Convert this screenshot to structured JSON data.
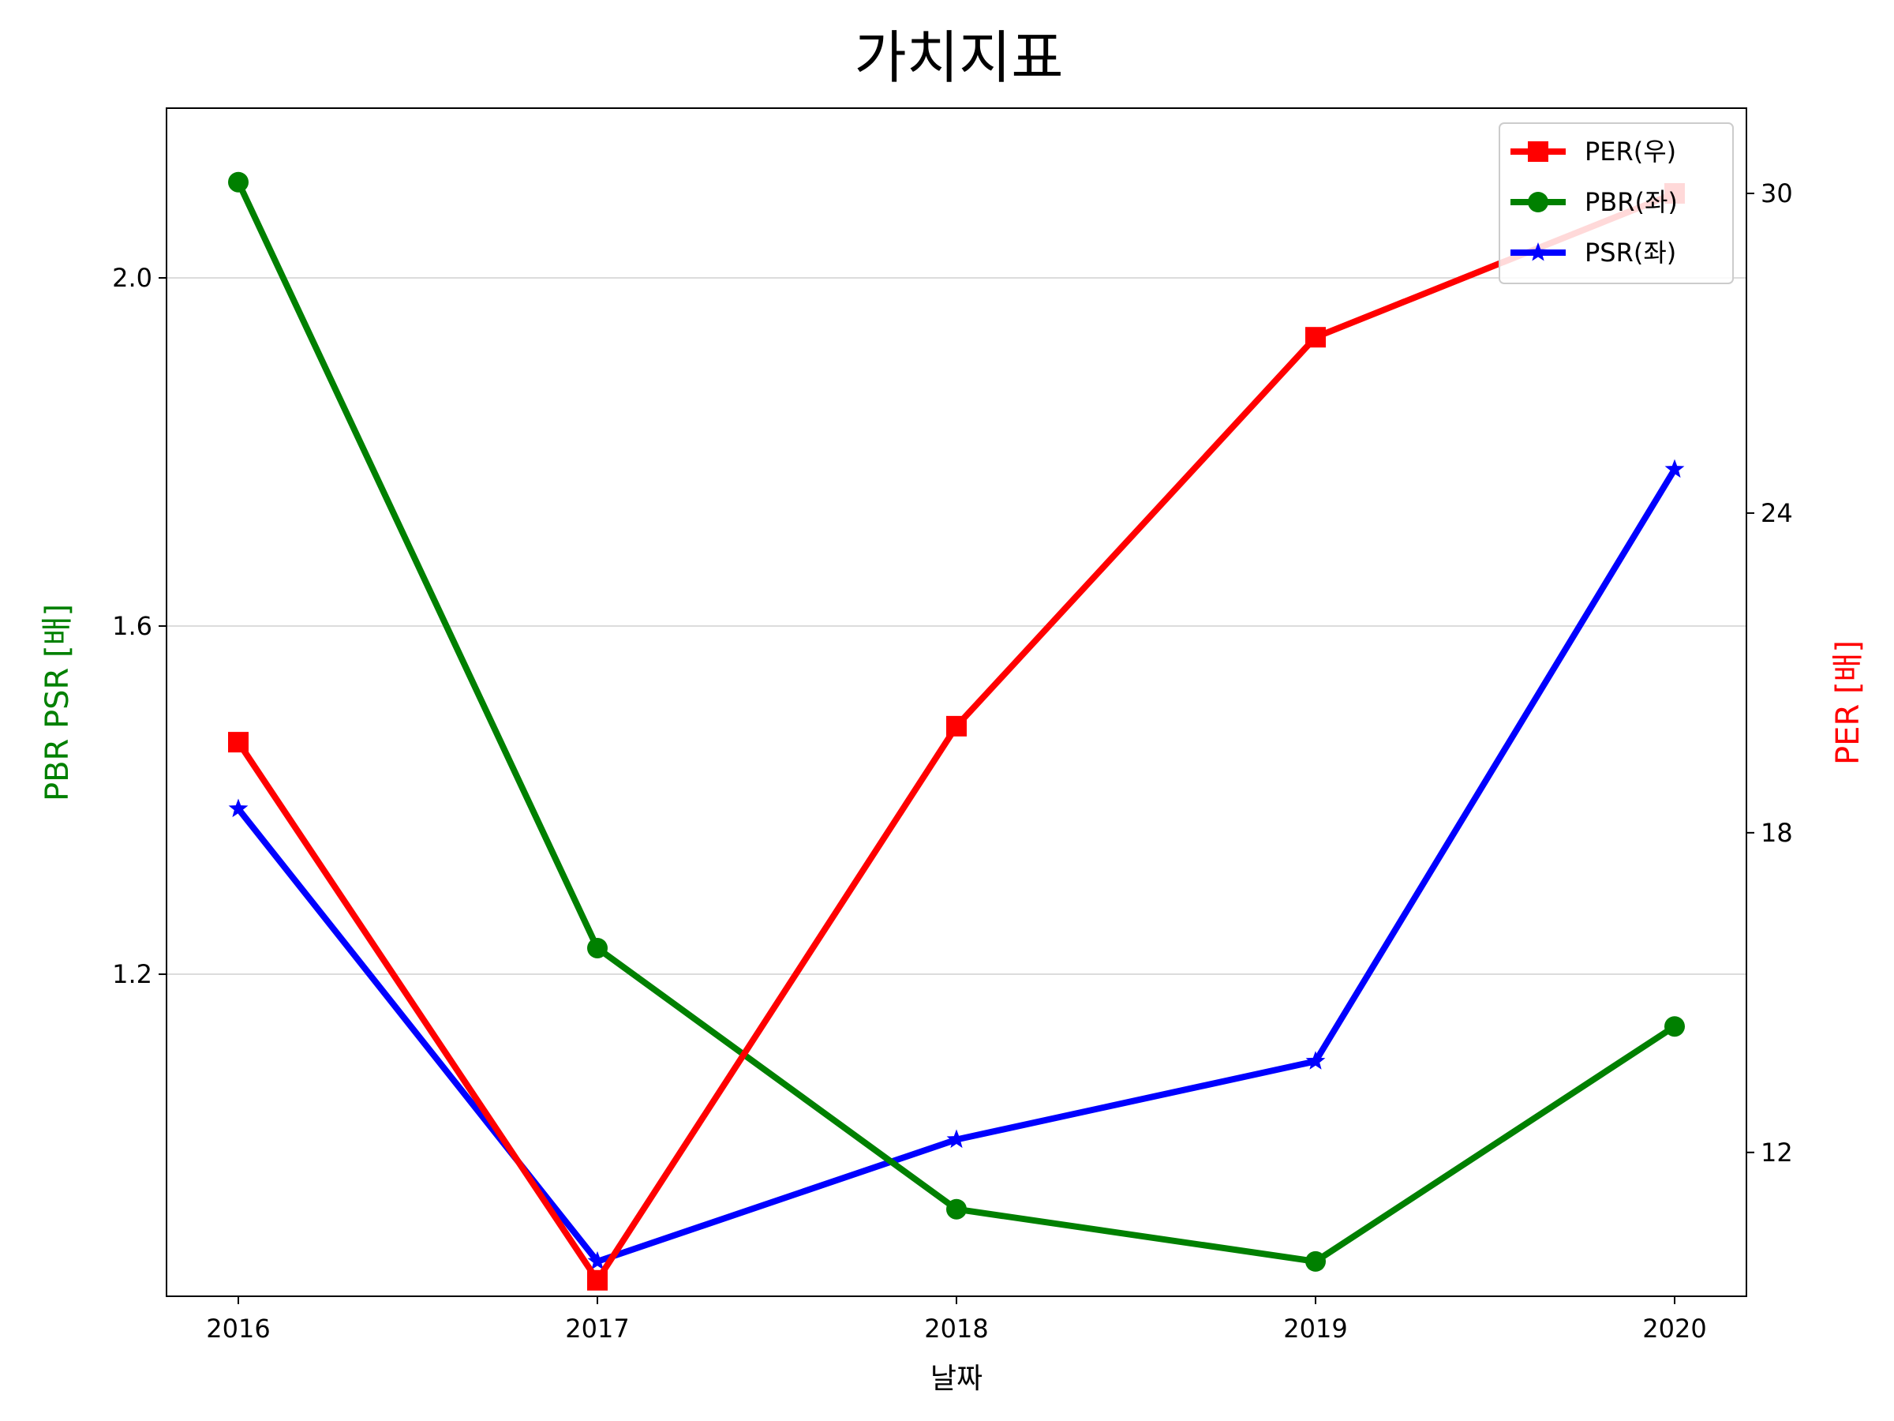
{
  "chart_data": {
    "type": "line",
    "title": "가치지표",
    "xlabel": "날짜",
    "ylabel_left": "PBR PSR [배]",
    "ylabel_right": "PER [배]",
    "ylabel_left_color": "#008000",
    "ylabel_right_color": "#ff0000",
    "x": [
      "2016",
      "2017",
      "2018",
      "2019",
      "2020"
    ],
    "xlim": [
      2015.8,
      2020.2
    ],
    "ylim_left": [
      0.83,
      2.195
    ],
    "ylim_right": [
      9.3,
      31.6
    ],
    "yticks_left": [
      "2.0",
      "1.6",
      "1.2"
    ],
    "yticks_right": [
      "30",
      "24",
      "18",
      "12"
    ],
    "grid": "horizontal",
    "legend_position": "top-right",
    "series": [
      {
        "name": "PER(우)",
        "axis": "right",
        "color": "#ff0000",
        "marker": "square",
        "values": [
          19.7,
          9.6,
          20.0,
          27.3,
          30.0
        ]
      },
      {
        "name": "PBR(좌)",
        "axis": "left",
        "color": "#008000",
        "marker": "circle",
        "values": [
          2.11,
          1.23,
          0.93,
          0.87,
          1.14
        ]
      },
      {
        "name": "PSR(좌)",
        "axis": "left",
        "color": "#0000ff",
        "marker": "star",
        "values": [
          1.39,
          0.87,
          1.01,
          1.1,
          1.78
        ]
      }
    ]
  }
}
